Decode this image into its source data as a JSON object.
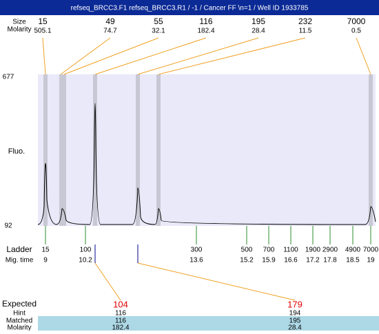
{
  "title": "refseq_BRCC3.F1  refseq_BRCC3.R1 / -1 / Cancer FF \\n=1 / Well ID 1933785",
  "header": {
    "size_label": "Size",
    "molarity_label": "Molarity"
  },
  "peaks": [
    {
      "size": "15",
      "molarity": "505.1"
    },
    {
      "size": "49",
      "molarity": "74.7"
    },
    {
      "size": "55",
      "molarity": "32.1"
    },
    {
      "size": "116",
      "molarity": "182.4"
    },
    {
      "size": "195",
      "molarity": "28.4"
    },
    {
      "size": "232",
      "molarity": "11.5"
    },
    {
      "size": "7000",
      "molarity": "0.5"
    }
  ],
  "axis": {
    "label": "Fluo.",
    "top": "677",
    "bottom": "92"
  },
  "ladder": {
    "label": "Ladder",
    "time_label": "Mig. time",
    "entries": [
      {
        "size": "15",
        "time": "9"
      },
      {
        "size": "100",
        "time": "10.2"
      },
      {
        "size": "300",
        "time": "13.6"
      },
      {
        "size": "500",
        "time": "15.2"
      },
      {
        "size": "700",
        "time": "15.9"
      },
      {
        "size": "1100",
        "time": "16.6"
      },
      {
        "size": "1900",
        "time": "17.2"
      },
      {
        "size": "2900",
        "time": "17.8"
      },
      {
        "size": "4900",
        "time": "18.5"
      },
      {
        "size": "7000",
        "time": "19"
      }
    ]
  },
  "expected": {
    "label": "Expected",
    "hint_label": "Hint",
    "matched_label": "Matched",
    "molarity_label": "Molarity",
    "columns": [
      {
        "expected": "104",
        "hint": "116",
        "matched": "116",
        "molarity": "182.4"
      },
      {
        "expected": "179",
        "hint": "194",
        "matched": "195",
        "molarity": "28.4"
      }
    ]
  }
}
